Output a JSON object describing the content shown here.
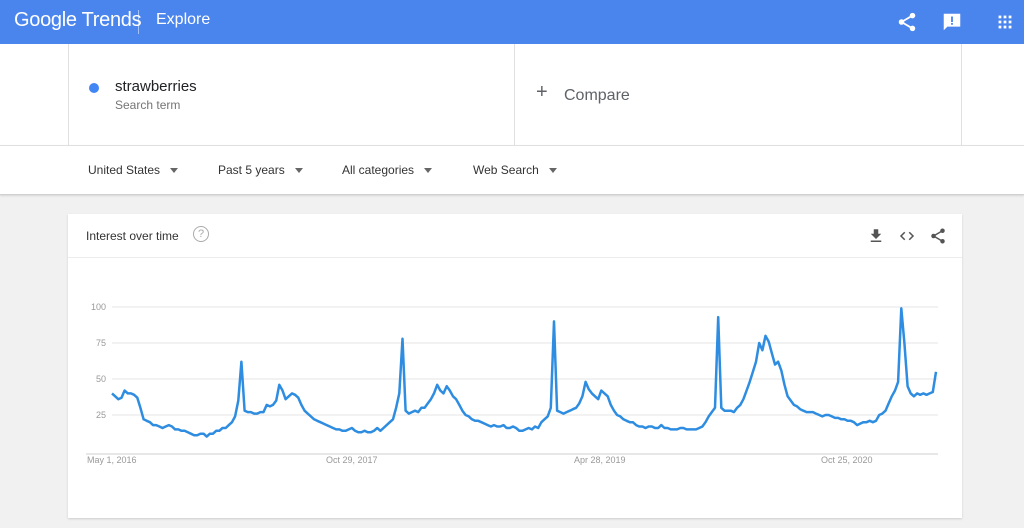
{
  "header": {
    "logo_text": "Google Trends",
    "section": "Explore",
    "icons": [
      "share-icon",
      "feedback-icon",
      "apps-icon"
    ]
  },
  "search": {
    "term": "strawberries",
    "term_type": "Search term",
    "term_color": "#4285f4",
    "compare_label": "Compare"
  },
  "filters": {
    "region": "United States",
    "time_range": "Past 5 years",
    "category": "All categories",
    "property": "Web Search"
  },
  "card": {
    "title": "Interest over time",
    "help_symbol": "?"
  },
  "chart_data": {
    "type": "line",
    "line_color": "#2e8de0",
    "ylim": [
      0,
      100
    ],
    "y_ticks": [
      25,
      50,
      75,
      100
    ],
    "grid": true,
    "x_tick_labels": [
      "May 1, 2016",
      "Oct 29, 2017",
      "Apr 28, 2019",
      "Oct 25, 2020"
    ],
    "series": [
      {
        "values": [
          40,
          38,
          36,
          37,
          42,
          40,
          40,
          39,
          37,
          30,
          22,
          21,
          20,
          18,
          18,
          17,
          16,
          17,
          18,
          17,
          15,
          15,
          14,
          14,
          13,
          12,
          11,
          11,
          12,
          12,
          10,
          12,
          12,
          14,
          14,
          16,
          16,
          18,
          20,
          24,
          35,
          62,
          28,
          27,
          27,
          26,
          26,
          27,
          27,
          32,
          31,
          32,
          35,
          46,
          42,
          36,
          38,
          40,
          39,
          37,
          32,
          28,
          26,
          24,
          22,
          21,
          20,
          19,
          18,
          17,
          16,
          15,
          15,
          14,
          14,
          15,
          16,
          14,
          13,
          13,
          14,
          13,
          13,
          14,
          16,
          14,
          16,
          18,
          20,
          22,
          30,
          40,
          78,
          28,
          26,
          27,
          28,
          27,
          30,
          30,
          33,
          36,
          40,
          46,
          42,
          40,
          45,
          42,
          38,
          36,
          32,
          28,
          25,
          24,
          22,
          21,
          21,
          20,
          19,
          18,
          17,
          18,
          17,
          17,
          18,
          16,
          16,
          17,
          16,
          14,
          14,
          15,
          16,
          15,
          17,
          16,
          20,
          22,
          24,
          30,
          90,
          28,
          27,
          26,
          27,
          28,
          29,
          30,
          33,
          38,
          48,
          43,
          40,
          38,
          36,
          42,
          40,
          38,
          32,
          28,
          25,
          24,
          22,
          21,
          20,
          20,
          18,
          17,
          17,
          16,
          17,
          17,
          16,
          16,
          18,
          16,
          16,
          15,
          15,
          15,
          16,
          16,
          15,
          15,
          15,
          15,
          16,
          17,
          20,
          24,
          27,
          30,
          93,
          30,
          28,
          28,
          28,
          27,
          30,
          32,
          36,
          42,
          48,
          55,
          62,
          75,
          70,
          80,
          76,
          68,
          60,
          62,
          56,
          46,
          38,
          35,
          32,
          31,
          29,
          28,
          27,
          27,
          27,
          26,
          25,
          24,
          25,
          25,
          24,
          23,
          23,
          22,
          22,
          21,
          21,
          20,
          18,
          19,
          20,
          20,
          21,
          20,
          21,
          25,
          26,
          28,
          33,
          38,
          42,
          48,
          99,
          75,
          45,
          40,
          38,
          40,
          39,
          40,
          39,
          40,
          41,
          55
        ]
      }
    ]
  }
}
